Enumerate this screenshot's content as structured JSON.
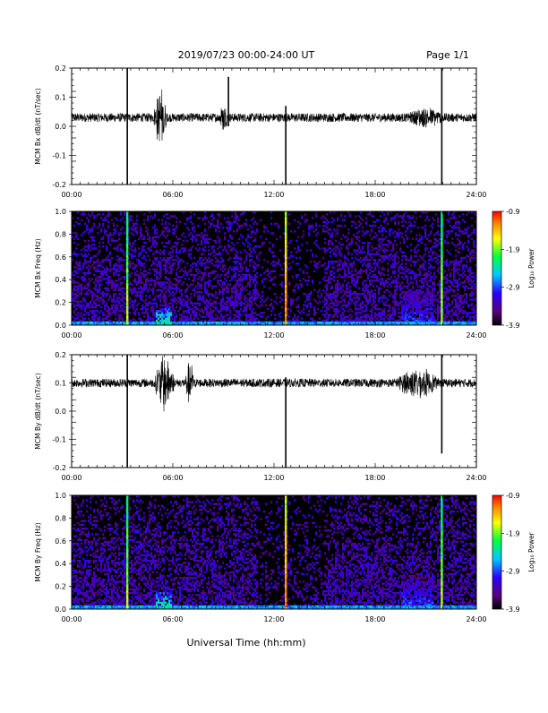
{
  "header": {
    "title": "2019/07/23  00:00-24:00 UT",
    "page": "Page 1/1"
  },
  "xlabel": "Universal Time (hh:mm)",
  "chart_data": [
    {
      "type": "line",
      "ylabel": "MCM Bx dB/dt (nT/sec)",
      "xlim": [
        0,
        24
      ],
      "ylim": [
        -0.2,
        0.2
      ],
      "x_ticks": [
        "00:00",
        "06:00",
        "12:00",
        "18:00",
        "24:00"
      ],
      "y_ticks": [
        "0.2",
        "0.1",
        "0.0",
        "-0.1",
        "-0.2"
      ],
      "y_tick_values": [
        0.2,
        0.1,
        0.0,
        -0.1,
        -0.2
      ],
      "baseline": 0.03,
      "noise_amplitude": 0.015,
      "bursts": [
        {
          "x": 5.25,
          "width": 0.8,
          "amplitude": 0.1
        },
        {
          "x": 9.0,
          "width": 0.5,
          "amplitude": 0.04
        },
        {
          "x": 21.0,
          "width": 2.0,
          "amplitude": 0.025
        }
      ],
      "spikes": [
        {
          "x": 3.3,
          "min": -0.2,
          "max": 0.2
        },
        {
          "x": 12.7,
          "min": -0.2,
          "max": 0.07
        },
        {
          "x": 21.95,
          "min": -0.2,
          "max": 0.2
        },
        {
          "x": 9.3,
          "min": 0.0,
          "max": 0.17
        }
      ]
    },
    {
      "type": "heatmap",
      "ylabel": "MCM Bx Freq (Hz)",
      "xlim": [
        0,
        24
      ],
      "ylim": [
        0.0,
        1.0
      ],
      "x_ticks": [
        "00:00",
        "06:00",
        "12:00",
        "18:00",
        "24:00"
      ],
      "y_ticks": [
        "1.0",
        "0.8",
        "0.6",
        "0.4",
        "0.2",
        "0.0"
      ],
      "y_tick_values": [
        1.0,
        0.8,
        0.6,
        0.4,
        0.2,
        0.0
      ],
      "colorbar": {
        "label": "Log₁₀ Power",
        "ticks": [
          "-0.9",
          "-1.9",
          "-2.9",
          "-3.9"
        ],
        "tick_values": [
          -0.9,
          -1.9,
          -2.9,
          -3.9
        ],
        "range": [
          -3.9,
          -0.9
        ]
      },
      "background_level": -3.9,
      "vertical_lines": [
        {
          "x": 3.3,
          "level": -1.5
        },
        {
          "x": 12.7,
          "level": -1.0
        },
        {
          "x": 21.95,
          "level": -1.5
        }
      ],
      "low_freq_enhancements": [
        {
          "x_start": 5.0,
          "x_end": 5.9,
          "f_max": 0.15,
          "level": -2.0
        },
        {
          "x_start": 19.5,
          "x_end": 21.5,
          "f_max": 0.3,
          "level": -2.6
        }
      ]
    },
    {
      "type": "line",
      "ylabel": "MCM By dB/dt (nT/sec)",
      "xlim": [
        0,
        24
      ],
      "ylim": [
        -0.2,
        0.2
      ],
      "x_ticks": [
        "00:00",
        "06:00",
        "12:00",
        "18:00",
        "24:00"
      ],
      "y_ticks": [
        "0.2",
        "0.1",
        "0.0",
        "-0.1",
        "-0.2"
      ],
      "y_tick_values": [
        0.2,
        0.1,
        0.0,
        -0.1,
        -0.2
      ],
      "baseline": 0.1,
      "noise_amplitude": 0.015,
      "bursts": [
        {
          "x": 5.5,
          "width": 1.2,
          "amplitude": 0.1
        },
        {
          "x": 7.0,
          "width": 0.5,
          "amplitude": 0.08
        },
        {
          "x": 20.5,
          "width": 2.5,
          "amplitude": 0.045
        }
      ],
      "spikes": [
        {
          "x": 3.3,
          "min": -0.2,
          "max": 0.2
        },
        {
          "x": 12.7,
          "min": -0.2,
          "max": 0.12
        },
        {
          "x": 21.95,
          "min": -0.15,
          "max": 0.2
        }
      ]
    },
    {
      "type": "heatmap",
      "ylabel": "MCM By Freq (Hz)",
      "xlim": [
        0,
        24
      ],
      "ylim": [
        0.0,
        1.0
      ],
      "x_ticks": [
        "00:00",
        "06:00",
        "12:00",
        "18:00",
        "24:00"
      ],
      "y_ticks": [
        "1.0",
        "0.8",
        "0.6",
        "0.4",
        "0.2",
        "0.0"
      ],
      "y_tick_values": [
        1.0,
        0.8,
        0.6,
        0.4,
        0.2,
        0.0
      ],
      "colorbar": {
        "label": "Log₁₀ Power",
        "ticks": [
          "-0.9",
          "-1.9",
          "-2.9",
          "-3.9"
        ],
        "tick_values": [
          -0.9,
          -1.9,
          -2.9,
          -3.9
        ],
        "range": [
          -3.9,
          -0.9
        ]
      },
      "background_level": -3.9,
      "vertical_lines": [
        {
          "x": 3.3,
          "level": -1.5
        },
        {
          "x": 12.7,
          "level": -1.0
        },
        {
          "x": 21.95,
          "level": -1.5
        }
      ],
      "low_freq_enhancements": [
        {
          "x_start": 5.0,
          "x_end": 5.9,
          "f_max": 0.15,
          "level": -2.0
        },
        {
          "x_start": 19.5,
          "x_end": 21.5,
          "f_max": 0.3,
          "level": -2.6
        }
      ]
    }
  ]
}
